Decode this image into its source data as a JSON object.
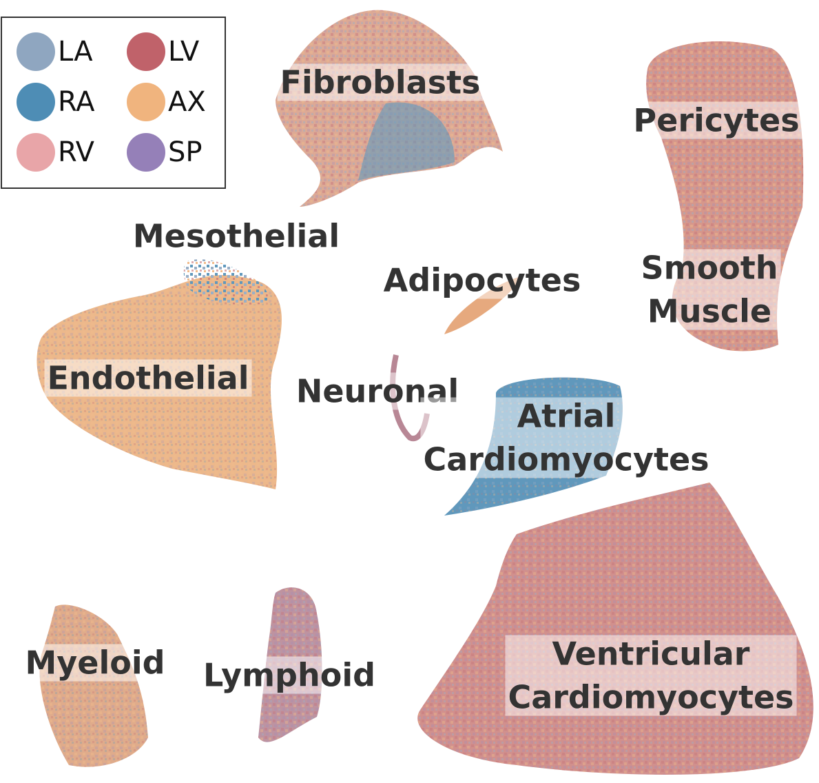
{
  "legend": [
    {
      "label": "LA",
      "color": "#8fa6c0"
    },
    {
      "label": "RA",
      "color": "#4e8db5"
    },
    {
      "label": "RV",
      "color": "#e8a5a8"
    },
    {
      "label": "LV",
      "color": "#c0626a"
    },
    {
      "label": "AX",
      "color": "#f0b47e"
    },
    {
      "label": "SP",
      "color": "#9580b8"
    }
  ],
  "clusters": [
    {
      "lines": [
        "Fibroblasts"
      ]
    },
    {
      "lines": [
        "Pericytes"
      ]
    },
    {
      "lines": [
        "Mesothelial"
      ]
    },
    {
      "lines": [
        "Adipocytes"
      ]
    },
    {
      "lines": [
        "Smooth",
        "Muscle"
      ]
    },
    {
      "lines": [
        "Endothelial"
      ]
    },
    {
      "lines": [
        "Neuronal"
      ]
    },
    {
      "lines": [
        "Atrial",
        "Cardiomyocytes"
      ]
    },
    {
      "lines": [
        "Ventricular",
        "Cardiomyocytes"
      ]
    },
    {
      "lines": [
        "Myeloid"
      ]
    },
    {
      "lines": [
        "Lymphoid"
      ]
    }
  ]
}
